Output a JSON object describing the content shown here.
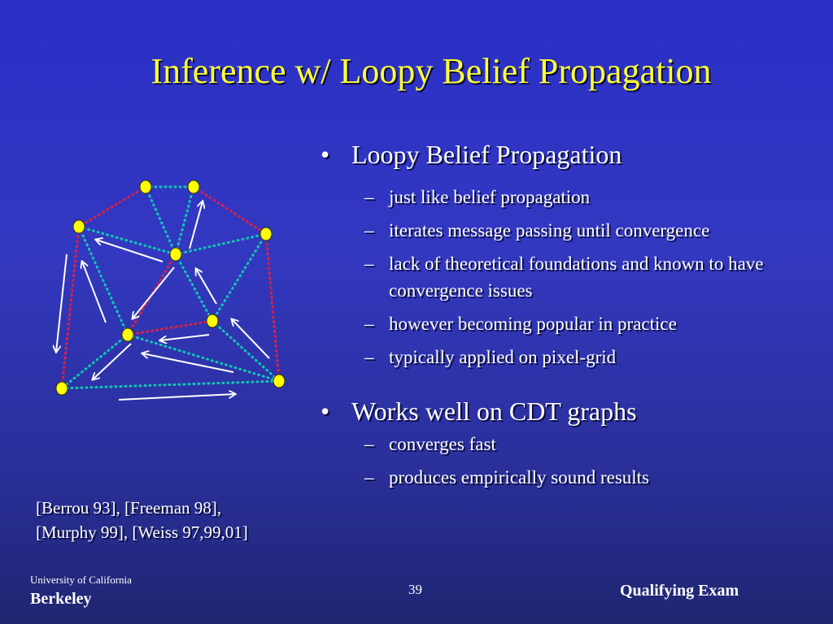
{
  "slide": {
    "title": "Inference w/ Loopy Belief Propagation",
    "bullet_marker": "•",
    "dash_marker": "–",
    "bullets": [
      {
        "text": "Loopy Belief Propagation",
        "subs": [
          "just like belief propagation",
          "iterates message passing until convergence",
          "lack of theoretical foundations and known to have convergence issues",
          "however becoming popular in practice",
          "typically applied on pixel-grid"
        ]
      },
      {
        "text": "Works well on CDT graphs",
        "subs": [
          "converges fast",
          "produces empirically sound results"
        ]
      }
    ],
    "references": [
      "[Berrou 93], [Freeman 98],",
      "[Murphy 99], [Weiss 97,99,01]"
    ]
  },
  "footer": {
    "university": "University of California",
    "campus": "Berkeley",
    "page_number": "39",
    "event": "Qualifying Exam"
  },
  "colors": {
    "title": "#ffff33",
    "node_fill": "#ffff00",
    "red_edge": "#e02040",
    "teal_edge": "#10c8b0",
    "arrow": "#ffffff"
  }
}
